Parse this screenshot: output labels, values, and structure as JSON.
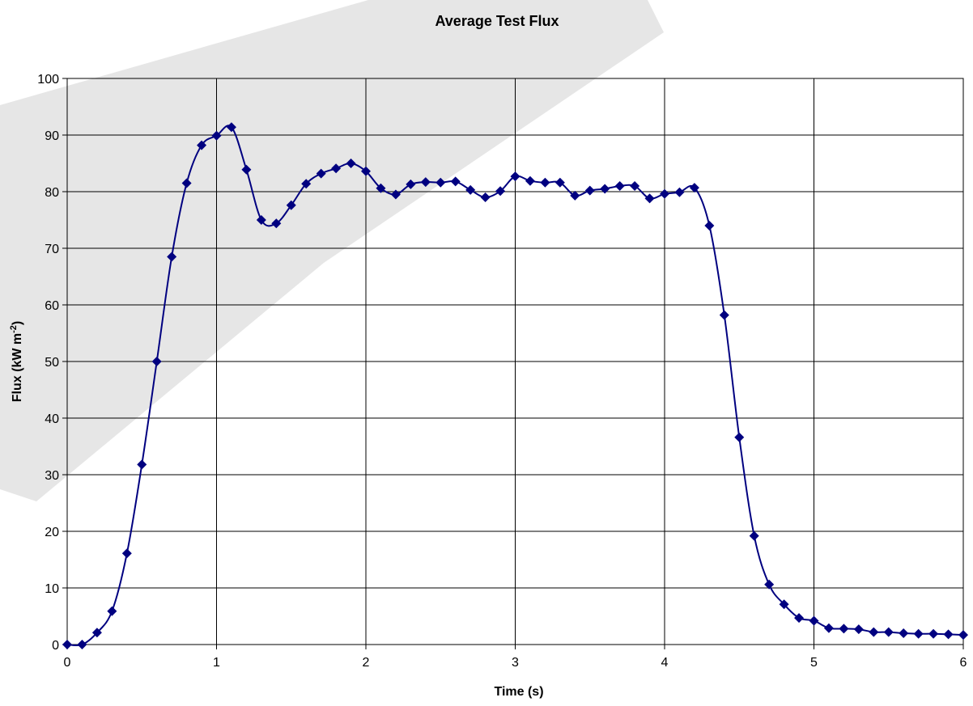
{
  "chart_data": {
    "type": "line",
    "title": "Average Test Flux",
    "xlabel": "Time (s)",
    "ylabel_main": "Flux (kW m",
    "ylabel_sup": "-2",
    "ylabel_end": ")",
    "xlim": [
      0,
      6
    ],
    "ylim": [
      0,
      100
    ],
    "x_ticks": [
      "0",
      "1",
      "2",
      "3",
      "4",
      "5",
      "6"
    ],
    "y_ticks": [
      "0",
      "10",
      "20",
      "30",
      "40",
      "50",
      "60",
      "70",
      "80",
      "90",
      "100"
    ],
    "grid": true,
    "marker": "diamond",
    "series_color": "#000080",
    "watermark_color": "#e6e6e6",
    "series": [
      {
        "x": [
          0,
          0.1,
          0.2,
          0.3,
          0.4,
          0.5,
          0.6,
          0.7,
          0.8,
          0.9,
          1.0,
          1.1,
          1.2,
          1.3,
          1.4,
          1.5,
          1.6,
          1.7,
          1.8,
          1.9,
          2.0,
          2.1,
          2.2,
          2.3,
          2.4,
          2.5,
          2.6,
          2.7,
          2.8,
          2.9,
          3.0,
          3.1,
          3.2,
          3.3,
          3.4,
          3.5,
          3.6,
          3.7,
          3.8,
          3.9,
          4.0,
          4.1,
          4.2,
          4.3,
          4.4,
          4.5,
          4.6,
          4.7,
          4.8,
          4.9,
          5.0,
          5.1,
          5.2,
          5.3,
          5.4,
          5.5,
          5.6,
          5.7,
          5.8,
          5.9,
          6.0
        ],
        "y": [
          0,
          0,
          2.1,
          5.9,
          16.1,
          31.8,
          50.0,
          68.5,
          81.5,
          88.2,
          89.9,
          91.4,
          83.9,
          75.0,
          74.4,
          77.6,
          81.4,
          83.2,
          84.1,
          85.0,
          83.6,
          80.6,
          79.5,
          81.3,
          81.7,
          81.6,
          81.8,
          80.3,
          79.0,
          80.1,
          82.7,
          81.9,
          81.6,
          81.6,
          79.3,
          80.2,
          80.5,
          81.0,
          81.0,
          78.8,
          79.6,
          79.9,
          80.7,
          74.0,
          58.2,
          36.6,
          19.2,
          10.6,
          7.1,
          4.7,
          4.2,
          2.9,
          2.8,
          2.7,
          2.2,
          2.2,
          2.0,
          1.9,
          1.9,
          1.8,
          1.7
        ]
      }
    ]
  }
}
